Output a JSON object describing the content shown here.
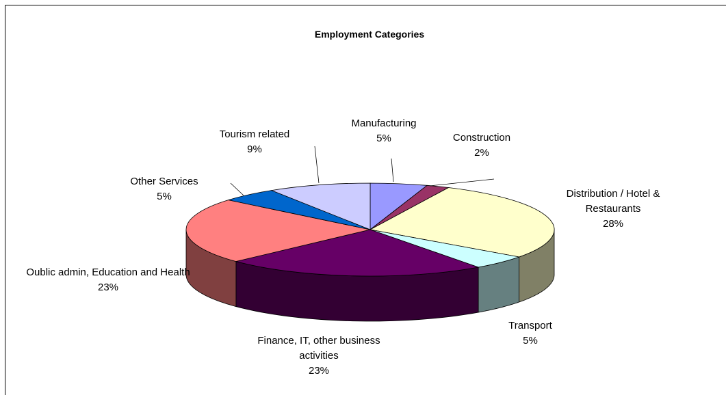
{
  "chart_data": {
    "type": "pie",
    "title": "Employment Categories",
    "categories": [
      "Manufacturing",
      "Construction",
      "Distribution / Hotel & Restaurants",
      "Transport",
      "Finance, IT, other business activities",
      "Oublic admin, Education and Health",
      "Other Services",
      "Tourism related"
    ],
    "values": [
      5,
      2,
      28,
      5,
      23,
      23,
      5,
      9
    ],
    "value_labels": [
      "5%",
      "2%",
      "28%",
      "5%",
      "23%",
      "23%",
      "5%",
      "9%"
    ],
    "colors": [
      "#9999ff",
      "#993366",
      "#ffffcc",
      "#ccffff",
      "#660066",
      "#ff8080",
      "#0066cc",
      "#ccccff"
    ]
  }
}
